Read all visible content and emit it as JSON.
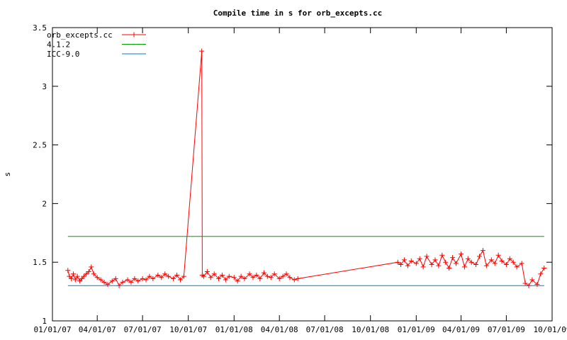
{
  "chart_data": {
    "type": "line",
    "title": "Compile time in s for orb_excepts.cc",
    "xlabel": "",
    "ylabel": "s",
    "xlim": [
      "2007-01-01",
      "2009-10-01"
    ],
    "ylim": [
      1,
      3.5
    ],
    "xticks": [
      {
        "date": "2007-01-01",
        "label": "01/01/07"
      },
      {
        "date": "2007-04-01",
        "label": "04/01/07"
      },
      {
        "date": "2007-07-01",
        "label": "07/01/07"
      },
      {
        "date": "2007-10-01",
        "label": "10/01/07"
      },
      {
        "date": "2008-01-01",
        "label": "01/01/08"
      },
      {
        "date": "2008-04-01",
        "label": "04/01/08"
      },
      {
        "date": "2008-07-01",
        "label": "07/01/08"
      },
      {
        "date": "2008-10-01",
        "label": "10/01/08"
      },
      {
        "date": "2009-01-01",
        "label": "01/01/09"
      },
      {
        "date": "2009-04-01",
        "label": "04/01/09"
      },
      {
        "date": "2009-07-01",
        "label": "07/01/09"
      },
      {
        "date": "2009-10-01",
        "label": "10/01/09"
      }
    ],
    "yticks": [
      {
        "value": 1,
        "label": "1"
      },
      {
        "value": 1.5,
        "label": "1.5"
      },
      {
        "value": 2,
        "label": "2"
      },
      {
        "value": 2.5,
        "label": "2.5"
      },
      {
        "value": 3,
        "label": "3"
      },
      {
        "value": 3.5,
        "label": "3.5"
      }
    ],
    "grid": false,
    "legend_position": "top-left",
    "series": [
      {
        "name": "orb_excepts.cc",
        "color": "#ff0000",
        "marker": "plus",
        "x": [
          "2007-02-01",
          "2007-02-04",
          "2007-02-08",
          "2007-02-12",
          "2007-02-16",
          "2007-02-20",
          "2007-02-25",
          "2007-03-01",
          "2007-03-05",
          "2007-03-10",
          "2007-03-15",
          "2007-03-20",
          "2007-03-25",
          "2007-04-01",
          "2007-04-08",
          "2007-04-15",
          "2007-04-22",
          "2007-05-01",
          "2007-05-08",
          "2007-05-15",
          "2007-05-22",
          "2007-06-01",
          "2007-06-08",
          "2007-06-15",
          "2007-06-22",
          "2007-07-01",
          "2007-07-08",
          "2007-07-15",
          "2007-07-22",
          "2007-08-01",
          "2007-08-08",
          "2007-08-15",
          "2007-08-22",
          "2007-09-01",
          "2007-09-08",
          "2007-09-15",
          "2007-09-22",
          "2007-10-28",
          "2007-10-29",
          "2007-11-01",
          "2007-11-08",
          "2007-11-15",
          "2007-11-22",
          "2007-12-01",
          "2007-12-08",
          "2007-12-15",
          "2007-12-22",
          "2008-01-01",
          "2008-01-08",
          "2008-01-15",
          "2008-01-22",
          "2008-02-01",
          "2008-02-08",
          "2008-02-15",
          "2008-02-22",
          "2008-03-01",
          "2008-03-08",
          "2008-03-15",
          "2008-03-22",
          "2008-04-01",
          "2008-04-08",
          "2008-04-15",
          "2008-04-22",
          "2008-05-01",
          "2008-05-08",
          "2008-11-25",
          "2008-12-01",
          "2008-12-08",
          "2008-12-15",
          "2008-12-22",
          "2009-01-01",
          "2009-01-08",
          "2009-01-15",
          "2009-01-22",
          "2009-02-01",
          "2009-02-08",
          "2009-02-15",
          "2009-02-22",
          "2009-03-01",
          "2009-03-08",
          "2009-03-15",
          "2009-03-22",
          "2009-04-01",
          "2009-04-08",
          "2009-04-15",
          "2009-04-22",
          "2009-05-01",
          "2009-05-08",
          "2009-05-15",
          "2009-05-22",
          "2009-06-01",
          "2009-06-08",
          "2009-06-15",
          "2009-06-22",
          "2009-07-01",
          "2009-07-08",
          "2009-07-15",
          "2009-07-22",
          "2009-08-01",
          "2009-08-08",
          "2009-08-15",
          "2009-08-22",
          "2009-09-01",
          "2009-09-08",
          "2009-09-15"
        ],
        "y": [
          1.43,
          1.38,
          1.36,
          1.4,
          1.35,
          1.38,
          1.34,
          1.36,
          1.38,
          1.4,
          1.42,
          1.46,
          1.4,
          1.37,
          1.35,
          1.33,
          1.31,
          1.34,
          1.36,
          1.3,
          1.33,
          1.35,
          1.33,
          1.36,
          1.34,
          1.36,
          1.35,
          1.38,
          1.36,
          1.39,
          1.37,
          1.4,
          1.38,
          1.36,
          1.39,
          1.35,
          1.38,
          3.3,
          1.39,
          1.38,
          1.42,
          1.37,
          1.4,
          1.36,
          1.39,
          1.35,
          1.38,
          1.37,
          1.34,
          1.38,
          1.36,
          1.4,
          1.37,
          1.39,
          1.36,
          1.41,
          1.38,
          1.37,
          1.4,
          1.36,
          1.38,
          1.4,
          1.37,
          1.35,
          1.36,
          1.5,
          1.48,
          1.52,
          1.47,
          1.51,
          1.49,
          1.53,
          1.46,
          1.55,
          1.48,
          1.52,
          1.47,
          1.56,
          1.5,
          1.45,
          1.54,
          1.49,
          1.57,
          1.46,
          1.53,
          1.5,
          1.48,
          1.55,
          1.6,
          1.47,
          1.52,
          1.49,
          1.56,
          1.51,
          1.48,
          1.53,
          1.5,
          1.46,
          1.49,
          1.32,
          1.3,
          1.35,
          1.31,
          1.4,
          1.45
        ]
      },
      {
        "name": "4.1.2",
        "color": "#00a000",
        "marker": "none",
        "x": [
          "2007-02-01",
          "2009-09-15"
        ],
        "y": [
          1.72,
          1.72
        ]
      },
      {
        "name": "ICC-9.0",
        "color": "#0080c0",
        "marker": "none",
        "x": [
          "2007-02-01",
          "2009-09-15"
        ],
        "y": [
          1.3,
          1.3
        ]
      }
    ]
  }
}
